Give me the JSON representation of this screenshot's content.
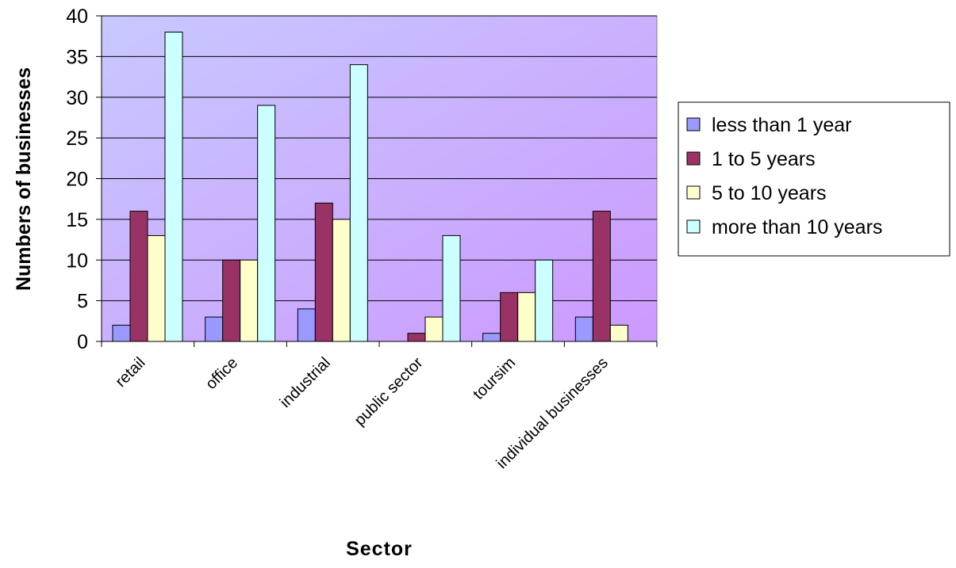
{
  "chart_data": {
    "type": "bar",
    "title": "",
    "xlabel": "Sector",
    "ylabel": "Numbers of businesses",
    "ylim": [
      0,
      40
    ],
    "yticks": [
      "0",
      "5",
      "10",
      "15",
      "20",
      "25",
      "30",
      "35",
      "40"
    ],
    "grid": true,
    "legend_position": "right",
    "categories": [
      "retail",
      "office",
      "industrial",
      "public sector",
      "toursim",
      "individual businesses"
    ],
    "series": [
      {
        "name": "less than 1 year",
        "color": "#9999ff",
        "values": [
          2,
          3,
          4,
          0,
          1,
          3
        ]
      },
      {
        "name": "1 to 5 years",
        "color": "#993366",
        "values": [
          16,
          10,
          17,
          1,
          6,
          16
        ]
      },
      {
        "name": "5 to 10 years",
        "color": "#ffffcc",
        "values": [
          13,
          10,
          15,
          3,
          6,
          2
        ]
      },
      {
        "name": "more than 10 years",
        "color": "#ccffff",
        "values": [
          38,
          29,
          34,
          13,
          10,
          0
        ]
      }
    ],
    "plot_background": [
      "#c8c8ff",
      "#cc99ff"
    ]
  }
}
